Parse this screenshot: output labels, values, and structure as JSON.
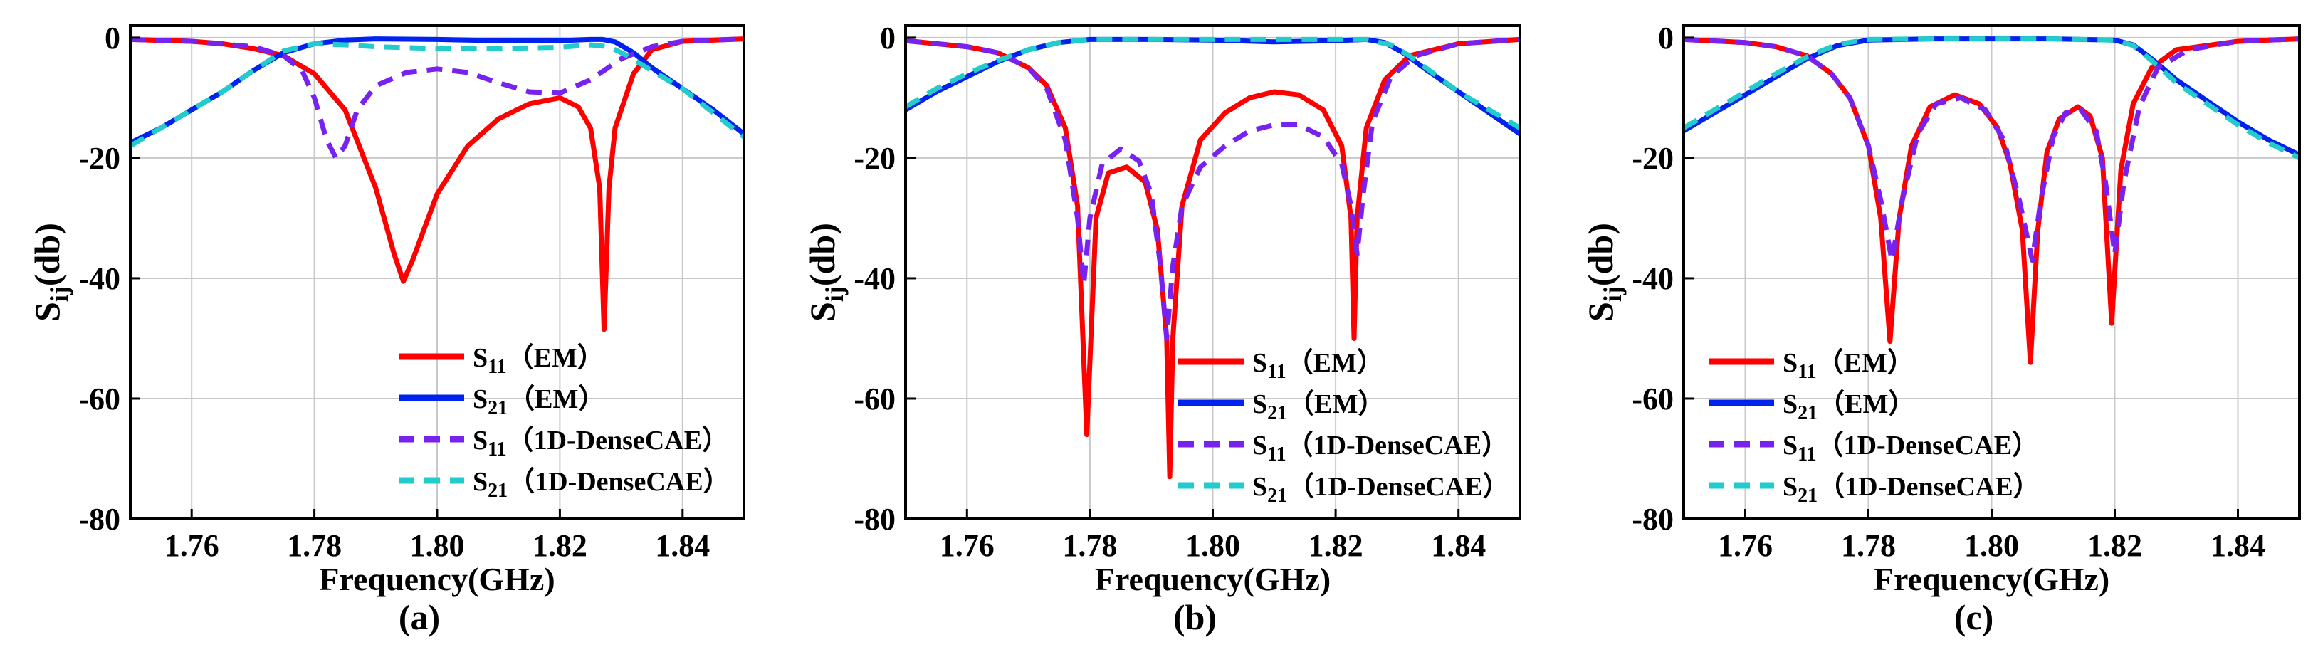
{
  "chart_data": [
    {
      "type": "line",
      "panel_label": "(a)",
      "xlabel": "Frequency(GHz)",
      "ylabel": "S",
      "ylabel_sub": "ij",
      "ylabel_unit": "(db)",
      "xlim": [
        1.75,
        1.85
      ],
      "ylim": [
        -80,
        2
      ],
      "xticks": [
        1.76,
        1.78,
        1.8,
        1.82,
        1.84
      ],
      "xtick_labels": [
        "1.76",
        "1.78",
        "1.80",
        "1.82",
        "1.84"
      ],
      "yticks": [
        0,
        -20,
        -40,
        -60,
        -80
      ],
      "ytick_labels": [
        "0",
        "-20",
        "-40",
        "-60",
        "-80"
      ],
      "grid": true,
      "legend_position": "bottom-center",
      "series": [
        {
          "name": "S11 (EM)",
          "label_main": "S",
          "label_sub": "11",
          "label_tail": "（EM）",
          "color": "#ff0000",
          "style": "solid",
          "x": [
            1.75,
            1.76,
            1.765,
            1.77,
            1.775,
            1.78,
            1.785,
            1.79,
            1.793,
            1.7945,
            1.796,
            1.8,
            1.805,
            1.81,
            1.815,
            1.82,
            1.823,
            1.825,
            1.8265,
            1.8272,
            1.828,
            1.829,
            1.832,
            1.835,
            1.84,
            1.85
          ],
          "y": [
            -0.3,
            -0.6,
            -1.0,
            -1.8,
            -3.0,
            -6.0,
            -12.0,
            -25.0,
            -36.0,
            -40.5,
            -37.0,
            -26.0,
            -18.0,
            -13.5,
            -11.0,
            -10.0,
            -11.5,
            -15.0,
            -25.0,
            -48.5,
            -25.0,
            -15.0,
            -6.0,
            -2.0,
            -0.6,
            -0.2
          ]
        },
        {
          "name": "S21 (EM)",
          "label_main": "S",
          "label_sub": "21",
          "label_tail": "（EM）",
          "color": "#0022ee",
          "style": "solid",
          "x": [
            1.75,
            1.755,
            1.76,
            1.765,
            1.77,
            1.775,
            1.78,
            1.785,
            1.79,
            1.8,
            1.81,
            1.82,
            1.825,
            1.827,
            1.829,
            1.832,
            1.835,
            1.84,
            1.845,
            1.85
          ],
          "y": [
            -17.5,
            -15.0,
            -12.0,
            -9.0,
            -5.5,
            -2.5,
            -1.0,
            -0.4,
            -0.2,
            -0.3,
            -0.5,
            -0.5,
            -0.3,
            -0.3,
            -0.7,
            -2.5,
            -5.0,
            -8.5,
            -12.0,
            -16.0
          ]
        },
        {
          "name": "S11 (1D-DenseCAE)",
          "label_main": "S",
          "label_sub": "11",
          "label_tail": "（1D-DenseCAE）",
          "color": "#7722ee",
          "style": "dash",
          "x": [
            1.75,
            1.76,
            1.77,
            1.775,
            1.778,
            1.78,
            1.782,
            1.7835,
            1.785,
            1.787,
            1.79,
            1.795,
            1.8,
            1.805,
            1.81,
            1.815,
            1.82,
            1.825,
            1.83,
            1.835,
            1.84,
            1.85
          ],
          "y": [
            -0.3,
            -0.6,
            -1.5,
            -3.0,
            -5.5,
            -10.0,
            -17.0,
            -20.0,
            -18.0,
            -12.0,
            -8.0,
            -5.8,
            -5.2,
            -5.8,
            -7.5,
            -9.0,
            -9.2,
            -7.0,
            -3.5,
            -1.5,
            -0.6,
            -0.2
          ]
        },
        {
          "name": "S21 (1D-DenseCAE)",
          "label_main": "S",
          "label_sub": "21",
          "label_tail": "（1D-DenseCAE）",
          "color": "#22cccc",
          "style": "dash",
          "x": [
            1.75,
            1.755,
            1.76,
            1.765,
            1.77,
            1.775,
            1.78,
            1.785,
            1.79,
            1.8,
            1.81,
            1.82,
            1.825,
            1.828,
            1.831,
            1.835,
            1.84,
            1.845,
            1.85
          ],
          "y": [
            -18.0,
            -15.0,
            -12.0,
            -9.0,
            -5.5,
            -2.2,
            -1.0,
            -1.2,
            -1.5,
            -1.8,
            -1.8,
            -1.6,
            -1.2,
            -1.5,
            -3.0,
            -5.5,
            -8.5,
            -12.5,
            -16.5
          ]
        }
      ]
    },
    {
      "type": "line",
      "panel_label": "(b)",
      "xlabel": "Frequency(GHz)",
      "ylabel": "S",
      "ylabel_sub": "ij",
      "ylabel_unit": "(db)",
      "xlim": [
        1.75,
        1.85
      ],
      "ylim": [
        -80,
        2
      ],
      "xticks": [
        1.76,
        1.78,
        1.8,
        1.82,
        1.84
      ],
      "xtick_labels": [
        "1.76",
        "1.78",
        "1.80",
        "1.82",
        "1.84"
      ],
      "yticks": [
        0,
        -20,
        -40,
        -60,
        -80
      ],
      "ytick_labels": [
        "0",
        "-20",
        "-40",
        "-60",
        "-80"
      ],
      "grid": true,
      "legend_position": "bottom-center",
      "series": [
        {
          "name": "S11 (EM)",
          "label_main": "S",
          "label_sub": "11",
          "label_tail": "（EM）",
          "color": "#ff0000",
          "style": "solid",
          "x": [
            1.75,
            1.76,
            1.765,
            1.77,
            1.773,
            1.776,
            1.778,
            1.7795,
            1.781,
            1.783,
            1.786,
            1.789,
            1.791,
            1.7925,
            1.793,
            1.7935,
            1.795,
            1.798,
            1.802,
            1.806,
            1.81,
            1.814,
            1.818,
            1.821,
            1.8225,
            1.823,
            1.8235,
            1.825,
            1.828,
            1.832,
            1.84,
            1.85
          ],
          "y": [
            -0.5,
            -1.5,
            -2.5,
            -5.0,
            -8.0,
            -15.0,
            -28.0,
            -66.0,
            -30.0,
            -22.5,
            -21.5,
            -24.0,
            -32.0,
            -50.0,
            -73.0,
            -50.0,
            -28.0,
            -17.0,
            -12.5,
            -10.0,
            -9.0,
            -9.5,
            -12.0,
            -18.0,
            -30.0,
            -50.0,
            -30.0,
            -15.0,
            -7.0,
            -3.0,
            -1.0,
            -0.3
          ]
        },
        {
          "name": "S21 (EM)",
          "label_main": "S",
          "label_sub": "21",
          "label_tail": "（EM）",
          "color": "#0022ee",
          "style": "solid",
          "x": [
            1.75,
            1.755,
            1.76,
            1.765,
            1.77,
            1.775,
            1.78,
            1.79,
            1.8,
            1.81,
            1.82,
            1.825,
            1.828,
            1.831,
            1.835,
            1.84,
            1.845,
            1.85
          ],
          "y": [
            -12.0,
            -9.0,
            -6.5,
            -4.0,
            -2.0,
            -0.8,
            -0.3,
            -0.3,
            -0.4,
            -0.7,
            -0.5,
            -0.3,
            -0.8,
            -2.5,
            -5.5,
            -9.0,
            -12.5,
            -16.0
          ]
        },
        {
          "name": "S11 (1D-DenseCAE)",
          "label_main": "S",
          "label_sub": "11",
          "label_tail": "（1D-DenseCAE）",
          "color": "#7722ee",
          "style": "dash",
          "x": [
            1.75,
            1.76,
            1.765,
            1.77,
            1.773,
            1.776,
            1.778,
            1.779,
            1.78,
            1.782,
            1.785,
            1.788,
            1.79,
            1.7915,
            1.7925,
            1.7935,
            1.795,
            1.798,
            1.802,
            1.806,
            1.81,
            1.814,
            1.818,
            1.821,
            1.8225,
            1.8235,
            1.8245,
            1.826,
            1.829,
            1.833,
            1.84,
            1.85
          ],
          "y": [
            -0.5,
            -1.5,
            -2.5,
            -5.0,
            -8.5,
            -17.0,
            -30.0,
            -41.0,
            -30.0,
            -21.0,
            -18.5,
            -20.5,
            -26.0,
            -38.0,
            -50.0,
            -38.0,
            -28.0,
            -21.5,
            -18.0,
            -15.5,
            -14.5,
            -14.5,
            -16.5,
            -21.0,
            -28.0,
            -36.0,
            -26.0,
            -14.0,
            -6.5,
            -3.0,
            -1.0,
            -0.3
          ]
        },
        {
          "name": "S21 (1D-DenseCAE)",
          "label_main": "S",
          "label_sub": "21",
          "label_tail": "（1D-DenseCAE）",
          "color": "#22cccc",
          "style": "dash",
          "x": [
            1.75,
            1.755,
            1.76,
            1.765,
            1.77,
            1.775,
            1.78,
            1.79,
            1.8,
            1.81,
            1.82,
            1.825,
            1.829,
            1.832,
            1.836,
            1.84,
            1.845,
            1.85
          ],
          "y": [
            -11.5,
            -8.5,
            -6.0,
            -3.8,
            -2.0,
            -0.8,
            -0.3,
            -0.3,
            -0.3,
            -0.3,
            -0.3,
            -0.3,
            -1.2,
            -3.0,
            -6.0,
            -9.0,
            -12.0,
            -15.0
          ]
        }
      ]
    },
    {
      "type": "line",
      "panel_label": "(c)",
      "xlabel": "Frequency(GHz)",
      "ylabel": "S",
      "ylabel_sub": "ij",
      "ylabel_unit": "(db)",
      "xlim": [
        1.75,
        1.85
      ],
      "ylim": [
        -80,
        2
      ],
      "xticks": [
        1.76,
        1.78,
        1.8,
        1.82,
        1.84
      ],
      "xtick_labels": [
        "1.76",
        "1.78",
        "1.80",
        "1.82",
        "1.84"
      ],
      "yticks": [
        0,
        -20,
        -40,
        -60,
        -80
      ],
      "ytick_labels": [
        "0",
        "-20",
        "-40",
        "-60",
        "-80"
      ],
      "grid": true,
      "legend_position": "bottom-center",
      "series": [
        {
          "name": "S11 (EM)",
          "label_main": "S",
          "label_sub": "11",
          "label_tail": "（EM）",
          "color": "#ff0000",
          "style": "solid",
          "x": [
            1.75,
            1.76,
            1.765,
            1.77,
            1.774,
            1.777,
            1.78,
            1.782,
            1.7835,
            1.785,
            1.787,
            1.79,
            1.794,
            1.798,
            1.801,
            1.803,
            1.805,
            1.8063,
            1.8075,
            1.809,
            1.811,
            1.814,
            1.816,
            1.818,
            1.8195,
            1.821,
            1.823,
            1.826,
            1.83,
            1.84,
            1.85
          ],
          "y": [
            -0.3,
            -0.8,
            -1.5,
            -3.0,
            -6.0,
            -10.0,
            -18.0,
            -30.0,
            -50.5,
            -30.0,
            -18.0,
            -11.5,
            -9.5,
            -11.0,
            -15.0,
            -21.0,
            -32.0,
            -54.0,
            -32.0,
            -19.0,
            -13.5,
            -11.5,
            -13.0,
            -20.0,
            -47.5,
            -22.0,
            -11.0,
            -5.0,
            -2.0,
            -0.6,
            -0.2
          ]
        },
        {
          "name": "S21 (EM)",
          "label_main": "S",
          "label_sub": "21",
          "label_tail": "（EM）",
          "color": "#0022ee",
          "style": "solid",
          "x": [
            1.75,
            1.755,
            1.76,
            1.765,
            1.77,
            1.775,
            1.78,
            1.79,
            1.8,
            1.81,
            1.82,
            1.823,
            1.826,
            1.83,
            1.835,
            1.84,
            1.845,
            1.85
          ],
          "y": [
            -15.5,
            -12.5,
            -9.5,
            -6.5,
            -3.5,
            -1.3,
            -0.4,
            -0.2,
            -0.2,
            -0.2,
            -0.4,
            -1.2,
            -3.5,
            -7.0,
            -10.5,
            -14.0,
            -17.0,
            -19.5
          ]
        },
        {
          "name": "S11 (1D-DenseCAE)",
          "label_main": "S",
          "label_sub": "11",
          "label_tail": "（1D-DenseCAE）",
          "color": "#7722ee",
          "style": "dash",
          "x": [
            1.75,
            1.76,
            1.765,
            1.77,
            1.774,
            1.777,
            1.78,
            1.782,
            1.7838,
            1.7855,
            1.788,
            1.791,
            1.795,
            1.799,
            1.802,
            1.8045,
            1.8066,
            1.808,
            1.81,
            1.812,
            1.8145,
            1.817,
            1.8185,
            1.82,
            1.8215,
            1.824,
            1.827,
            1.832,
            1.84,
            1.85
          ],
          "y": [
            -0.3,
            -0.8,
            -1.5,
            -3.0,
            -6.0,
            -10.0,
            -18.0,
            -27.0,
            -37.0,
            -27.0,
            -16.0,
            -11.0,
            -10.0,
            -12.0,
            -17.0,
            -27.0,
            -37.0,
            -27.0,
            -16.5,
            -12.5,
            -12.0,
            -15.5,
            -24.0,
            -36.0,
            -24.0,
            -11.5,
            -5.0,
            -2.0,
            -0.6,
            -0.2
          ]
        },
        {
          "name": "S21 (1D-DenseCAE)",
          "label_main": "S",
          "label_sub": "21",
          "label_tail": "（1D-DenseCAE）",
          "color": "#22cccc",
          "style": "dash",
          "x": [
            1.75,
            1.755,
            1.76,
            1.765,
            1.77,
            1.775,
            1.78,
            1.79,
            1.8,
            1.81,
            1.82,
            1.823,
            1.826,
            1.83,
            1.835,
            1.84,
            1.845,
            1.85
          ],
          "y": [
            -15.0,
            -12.0,
            -9.0,
            -6.0,
            -3.2,
            -1.1,
            -0.3,
            -0.2,
            -0.2,
            -0.2,
            -0.4,
            -1.3,
            -3.8,
            -7.5,
            -11.0,
            -14.5,
            -17.5,
            -20.0
          ]
        }
      ]
    }
  ]
}
